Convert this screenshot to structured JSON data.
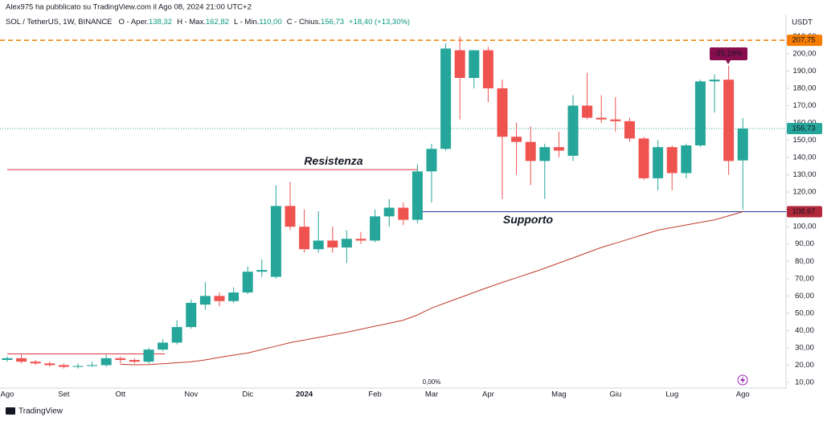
{
  "header": {
    "author_line": "Alex975 ha pubblicato su TradingView.com il Ago 08, 2024 21:00 UTC+2",
    "symbol": "SOL / TetherUS, 1W, BINANCE",
    "ohlc": [
      {
        "label": "O - Aper.",
        "value": "138,32"
      },
      {
        "label": "H - Max.",
        "value": "162,82"
      },
      {
        "label": "L - Min.",
        "value": "110,00"
      },
      {
        "label": "C - Chius.",
        "value": "156,73"
      }
    ],
    "change": "+18,40 (+13,30%)"
  },
  "footer": {
    "brand": "TradingView"
  },
  "chart_data": {
    "type": "candlestick",
    "currency": "USDT",
    "categories": [
      "Ago",
      null,
      null,
      null,
      "Set",
      null,
      null,
      null,
      "Ott",
      null,
      null,
      null,
      null,
      "Nov",
      null,
      null,
      null,
      "Dic",
      null,
      null,
      null,
      "2024",
      null,
      null,
      null,
      null,
      "Feb",
      null,
      null,
      null,
      "Mar",
      null,
      null,
      null,
      "Apr",
      null,
      null,
      null,
      null,
      "Mag",
      null,
      null,
      null,
      "Giu",
      null,
      null,
      null,
      "Lug",
      null,
      null,
      null,
      null,
      "Ago"
    ],
    "open": [
      23,
      24,
      22,
      21,
      20,
      19,
      19.5,
      20,
      24,
      23,
      22,
      29,
      33,
      42,
      55,
      60,
      57,
      62,
      74,
      71,
      112,
      100,
      87,
      92,
      88,
      93,
      92,
      106,
      111,
      104,
      132,
      145,
      202,
      186,
      202,
      180,
      152,
      149,
      138,
      146,
      141,
      170,
      163,
      162,
      161,
      151,
      128,
      146,
      131,
      147,
      184,
      185,
      138.32
    ],
    "high": [
      25,
      26,
      23,
      22,
      21,
      21,
      22,
      26,
      25,
      24,
      30,
      35,
      46,
      58,
      68,
      62,
      65,
      77,
      81,
      124,
      126,
      110,
      109,
      100,
      98,
      97,
      110,
      116,
      114,
      136,
      148,
      206,
      210,
      202,
      204,
      185,
      160,
      158,
      148,
      155,
      176,
      189,
      176,
      175,
      163,
      152,
      150,
      147,
      148,
      185,
      188,
      193,
      162.82
    ],
    "low": [
      22,
      21,
      20,
      19,
      18,
      18,
      19,
      19,
      21,
      21,
      21,
      28,
      32,
      41,
      52,
      54,
      56,
      61,
      71,
      70,
      98,
      85,
      85,
      85,
      79,
      90,
      91,
      100,
      101,
      102,
      114,
      144,
      162,
      180,
      172,
      116,
      130,
      124,
      116,
      140,
      138,
      162,
      160,
      155,
      149,
      127,
      121,
      121,
      128,
      146,
      166,
      130,
      110
    ],
    "close": [
      24,
      22,
      21,
      20,
      19,
      19.5,
      20,
      24,
      23,
      22,
      29,
      33,
      42,
      56,
      60,
      57,
      62,
      74,
      75,
      112,
      100,
      87,
      92,
      88,
      93,
      92,
      106,
      111,
      104,
      132,
      145,
      203,
      186,
      202,
      180,
      152,
      149,
      138,
      146,
      144,
      170,
      163,
      162,
      161,
      151,
      128,
      146,
      131,
      147,
      184,
      185,
      138,
      156.73
    ],
    "up_color": "#26a69a",
    "down_color": "#ef5350",
    "ma": {
      "color": "#c0392b",
      "values": [
        null,
        null,
        null,
        null,
        null,
        null,
        null,
        null,
        20.5,
        20.2,
        20.3,
        20.8,
        21.4,
        22,
        23,
        24.5,
        25.8,
        27,
        29,
        31,
        33,
        34.5,
        36,
        37.5,
        39,
        40.8,
        42.5,
        44.2,
        46,
        49,
        53,
        56,
        59,
        62,
        65,
        67.8,
        70.5,
        73.2,
        76,
        79,
        82,
        85,
        88,
        90.5,
        93,
        95.5,
        98,
        99.5,
        101,
        102.5,
        104,
        106.3,
        108.67
      ]
    },
    "ylim": [
      6.75,
      213.4
    ],
    "yticks": [
      {
        "value": 10,
        "label": "10,00"
      },
      {
        "value": 20,
        "label": "20,00"
      },
      {
        "value": 30,
        "label": "30,00"
      },
      {
        "value": 40,
        "label": "40,00"
      },
      {
        "value": 50,
        "label": "50,00"
      },
      {
        "value": 60,
        "label": "60,00"
      },
      {
        "value": 70,
        "label": "70,00"
      },
      {
        "value": 80,
        "label": "80,00"
      },
      {
        "value": 90,
        "label": "90,00"
      },
      {
        "value": 100,
        "label": "100,00"
      },
      {
        "value": 110,
        "label": "110,00"
      },
      {
        "value": 120,
        "label": "120,00"
      },
      {
        "value": 130,
        "label": "130,00"
      },
      {
        "value": 140,
        "label": "140,00"
      },
      {
        "value": 150,
        "label": "150,00"
      },
      {
        "value": 160,
        "label": "160,00"
      },
      {
        "value": 170,
        "label": "170,00"
      },
      {
        "value": 180,
        "label": "180,00"
      },
      {
        "value": 190,
        "label": "190,00"
      },
      {
        "value": 200,
        "label": "200,00"
      },
      {
        "value": 210,
        "label": "210,00"
      }
    ],
    "levels": [
      {
        "value": 26.5,
        "color": "#d9363e",
        "style": "solid"
      },
      {
        "value": 133,
        "color": "#d9363e",
        "style": "solid",
        "text": "Resistenza"
      },
      {
        "value": 207.75,
        "label": "207,75",
        "color": "#f57c00",
        "style": "dashed"
      },
      {
        "value": 156.73,
        "label": "156,73",
        "color": "#26a69a",
        "style": "dotted"
      },
      {
        "value": 108.67,
        "label": "108,67",
        "color": "#1f3c9c",
        "label_color": "#b2283b",
        "style": "solid",
        "text": "Supporto"
      }
    ],
    "annotations": [
      "-25.19%",
      "0,00%"
    ]
  }
}
